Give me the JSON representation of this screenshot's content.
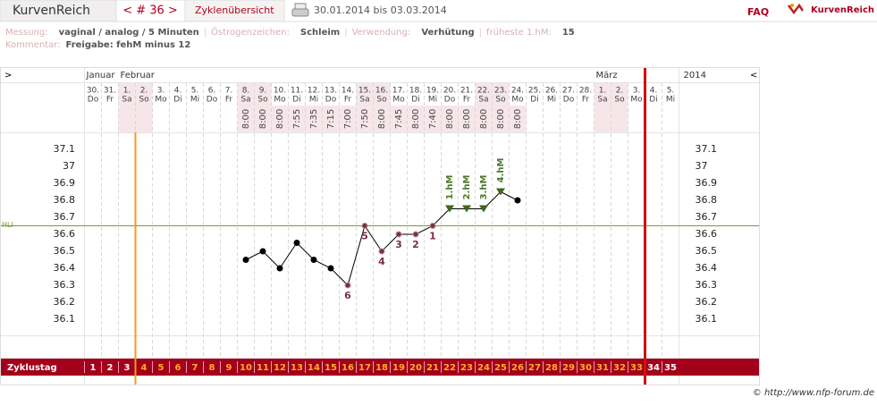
{
  "header": {
    "logo": "KurvenReich",
    "cycle_nav": "< # 36 >",
    "overview": "Zyklenübersicht",
    "date_range": "30.01.2014 bis 03.03.2014",
    "faq": "FAQ",
    "brand": "KurvenReich"
  },
  "info": {
    "fields": [
      {
        "label": "Messung:",
        "value": "vaginal / analog / 5 Minuten"
      },
      {
        "label": "Östrogenzeichen:",
        "value": "Schleim"
      },
      {
        "label": "Verwendung:",
        "value": "Verhütung"
      },
      {
        "label": "früheste 1.hM:",
        "value": "15"
      }
    ],
    "comment_label": "Kommentar:",
    "comment": "Freigabe: fehM minus 12"
  },
  "chart_data": {
    "type": "line",
    "nav_prev": ">",
    "nav_next": "<",
    "year": "2014",
    "months": [
      "Januar",
      null,
      "Februar",
      null,
      null,
      null,
      null,
      null,
      null,
      null,
      null,
      null,
      null,
      null,
      null,
      null,
      null,
      null,
      null,
      null,
      null,
      null,
      null,
      null,
      null,
      null,
      null,
      null,
      null,
      null,
      "März",
      null,
      null,
      null,
      null
    ],
    "categories": [
      "30.",
      "31.",
      "1.",
      "2.",
      "3.",
      "4.",
      "5.",
      "6.",
      "7.",
      "8.",
      "9.",
      "10.",
      "11.",
      "12.",
      "13.",
      "14.",
      "15.",
      "16.",
      "17.",
      "18.",
      "19.",
      "20.",
      "21.",
      "22.",
      "23.",
      "24.",
      "25.",
      "26.",
      "27.",
      "28.",
      "1.",
      "2.",
      "3.",
      "4.",
      "5."
    ],
    "weekdays": [
      "Do",
      "Fr",
      "Sa",
      "So",
      "Mo",
      "Di",
      "Mi",
      "Do",
      "Fr",
      "Sa",
      "So",
      "Mo",
      "Di",
      "Mi",
      "Do",
      "Fr",
      "Sa",
      "So",
      "Mo",
      "Di",
      "Mi",
      "Do",
      "Fr",
      "Sa",
      "So",
      "Mo",
      "Di",
      "Mi",
      "Do",
      "Fr",
      "Sa",
      "So",
      "Mo",
      "Di",
      "Mi"
    ],
    "times": [
      null,
      null,
      null,
      null,
      null,
      null,
      null,
      null,
      null,
      "8:00",
      "8:00",
      "8:00",
      "7:55",
      "7:35",
      "7:15",
      "7:00",
      "7:50",
      "8:00",
      "7:45",
      "8:00",
      "7:40",
      "8:00",
      "8:00",
      "8:00",
      "8:00",
      "8:00",
      null,
      null,
      null,
      null,
      null,
      null,
      null,
      null,
      null
    ],
    "values": [
      null,
      null,
      null,
      null,
      null,
      null,
      null,
      null,
      null,
      36.45,
      36.5,
      36.4,
      36.55,
      36.45,
      36.4,
      36.3,
      36.65,
      36.5,
      36.6,
      36.6,
      36.65,
      36.75,
      36.75,
      36.75,
      36.85,
      36.8,
      null,
      null,
      null,
      null,
      null,
      null,
      null,
      null,
      null
    ],
    "count_labels": [
      null,
      null,
      null,
      null,
      null,
      null,
      null,
      null,
      null,
      null,
      null,
      null,
      null,
      null,
      null,
      "6",
      "5",
      "4",
      "3",
      "2",
      "1",
      null,
      null,
      null,
      null,
      null,
      null,
      null,
      null,
      null,
      null,
      null,
      null,
      null,
      null
    ],
    "hm_labels": [
      null,
      null,
      null,
      null,
      null,
      null,
      null,
      null,
      null,
      null,
      null,
      null,
      null,
      null,
      null,
      null,
      null,
      null,
      null,
      null,
      null,
      "1.hM",
      "2.hM",
      "3.hM",
      "4.hM",
      null,
      null,
      null,
      null,
      null,
      null,
      null,
      null,
      null,
      null
    ],
    "color": "#000000",
    "coverline": {
      "label": "HLI",
      "value": 36.65,
      "color": "#7a9a3a"
    },
    "ylim": [
      36.0,
      37.2
    ],
    "yticks": [
      36.1,
      36.2,
      36.3,
      36.4,
      36.5,
      36.6,
      36.7,
      36.8,
      36.9,
      37,
      37.1
    ],
    "grid": true,
    "cycle_label": "Zyklustag",
    "cycle_days": [
      1,
      2,
      3,
      4,
      5,
      6,
      7,
      8,
      9,
      10,
      11,
      12,
      13,
      14,
      15,
      16,
      17,
      18,
      19,
      20,
      21,
      22,
      23,
      24,
      25,
      26,
      27,
      28,
      29,
      30,
      31,
      32,
      33,
      34,
      35
    ]
  },
  "footer": "© http://www.nfp-forum.de"
}
